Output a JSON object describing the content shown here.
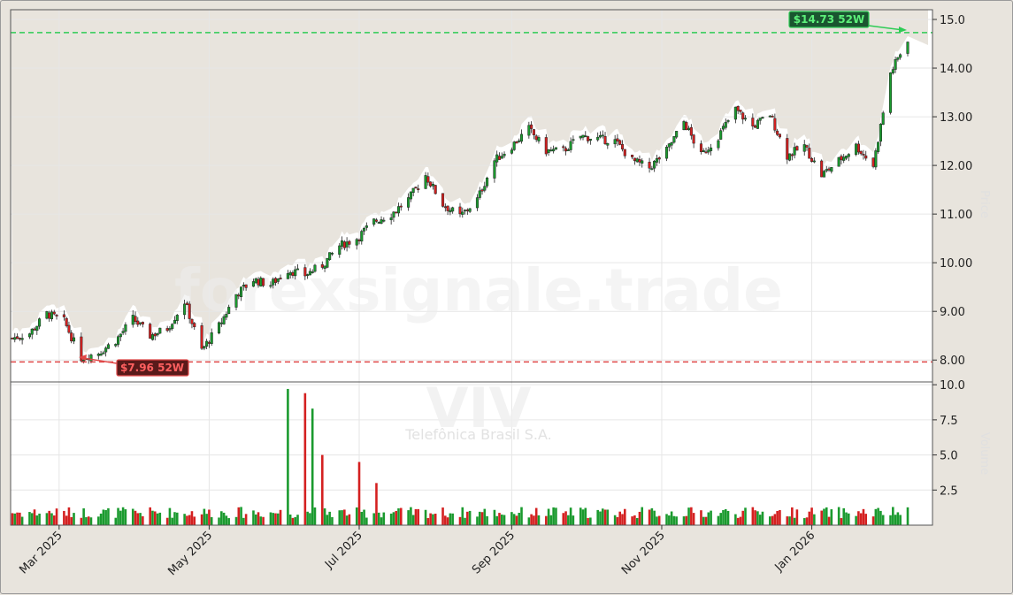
{
  "watermark": {
    "site": "forexsignale.trade",
    "ticker": "VIV",
    "company": "Telefônica Brasil S.A."
  },
  "side_labels": {
    "price": "Price",
    "volume": "Volume"
  },
  "high_label": "$14.73 52W",
  "low_label": "$7.96 52W",
  "colors": {
    "up": "#1a9a2e",
    "down": "#d42020",
    "high_line": "#2ecc55",
    "low_line": "#e04848",
    "bg": "#e8e4dd",
    "plot_bg": "#ffffff"
  },
  "chart_data": {
    "type": "candlestick",
    "price_axis": {
      "ticks": [
        8.0,
        9.0,
        10.0,
        11.0,
        12.0,
        13.0,
        14.0,
        15.0
      ],
      "labels": [
        "8.00",
        "9.00",
        "10.00",
        "11.00",
        "12.00",
        "13.00",
        "14.00",
        "15.0"
      ],
      "ylim": [
        7.55,
        15.2
      ]
    },
    "volume_axis": {
      "ticks": [
        2.5,
        5.0,
        7.5,
        10.0
      ],
      "labels": [
        "2.5",
        "5.0",
        "7.5",
        "10.0"
      ],
      "ylim": [
        0,
        10.2
      ]
    },
    "x_labels": [
      "Mar 2025",
      "May 2025",
      "Jul 2025",
      "Sep 2025",
      "Nov 2025",
      "Jan 2026"
    ],
    "x_label_dates": [
      "2025-03-01",
      "2025-05-01",
      "2025-07-01",
      "2025-09-01",
      "2025-11-01",
      "2026-01-01"
    ],
    "date_range": [
      "2025-02-10",
      "2026-02-09"
    ],
    "high_52w": 14.73,
    "low_52w": 7.96,
    "price_series": [
      [
        "2025-02-10",
        8.45
      ],
      [
        "2025-02-17",
        8.55
      ],
      [
        "2025-02-24",
        8.95
      ],
      [
        "2025-03-03",
        8.8
      ],
      [
        "2025-03-10",
        8.05
      ],
      [
        "2025-03-17",
        8.15
      ],
      [
        "2025-03-24",
        8.4
      ],
      [
        "2025-03-31",
        8.85
      ],
      [
        "2025-04-07",
        8.5
      ],
      [
        "2025-04-14",
        8.65
      ],
      [
        "2025-04-21",
        9.2
      ],
      [
        "2025-04-28",
        8.2
      ],
      [
        "2025-05-05",
        8.7
      ],
      [
        "2025-05-12",
        9.35
      ],
      [
        "2025-05-19",
        9.65
      ],
      [
        "2025-05-26",
        9.55
      ],
      [
        "2025-06-02",
        9.85
      ],
      [
        "2025-06-09",
        9.75
      ],
      [
        "2025-06-16",
        9.95
      ],
      [
        "2025-06-23",
        10.35
      ],
      [
        "2025-06-30",
        10.5
      ],
      [
        "2025-07-07",
        10.85
      ],
      [
        "2025-07-14",
        11.0
      ],
      [
        "2025-07-21",
        11.3
      ],
      [
        "2025-07-28",
        11.8
      ],
      [
        "2025-08-04",
        11.2
      ],
      [
        "2025-08-11",
        10.95
      ],
      [
        "2025-08-18",
        11.3
      ],
      [
        "2025-08-25",
        12.1
      ],
      [
        "2025-09-01",
        12.4
      ],
      [
        "2025-09-08",
        12.75
      ],
      [
        "2025-09-15",
        12.3
      ],
      [
        "2025-09-22",
        12.3
      ],
      [
        "2025-09-29",
        12.6
      ],
      [
        "2025-10-06",
        12.55
      ],
      [
        "2025-10-13",
        12.5
      ],
      [
        "2025-10-20",
        12.1
      ],
      [
        "2025-10-27",
        11.95
      ],
      [
        "2025-11-03",
        12.3
      ],
      [
        "2025-11-10",
        12.9
      ],
      [
        "2025-11-17",
        12.2
      ],
      [
        "2025-11-24",
        12.6
      ],
      [
        "2025-12-01",
        13.15
      ],
      [
        "2025-12-08",
        12.8
      ],
      [
        "2025-12-15",
        13.05
      ],
      [
        "2025-12-22",
        12.2
      ],
      [
        "2025-12-29",
        12.4
      ],
      [
        "2026-01-05",
        11.8
      ],
      [
        "2026-01-12",
        12.1
      ],
      [
        "2026-01-19",
        12.4
      ],
      [
        "2026-01-26",
        12.0
      ],
      [
        "2026-02-02",
        13.9
      ],
      [
        "2026-02-09",
        14.6
      ]
    ],
    "volume_spikes": [
      [
        "2025-06-02",
        9.7
      ],
      [
        "2025-06-09",
        9.4
      ],
      [
        "2025-06-12",
        8.3
      ],
      [
        "2025-06-16",
        5.0
      ],
      [
        "2025-07-01",
        4.5
      ],
      [
        "2025-07-08",
        3.0
      ]
    ],
    "volume_baseline": 1.0
  }
}
